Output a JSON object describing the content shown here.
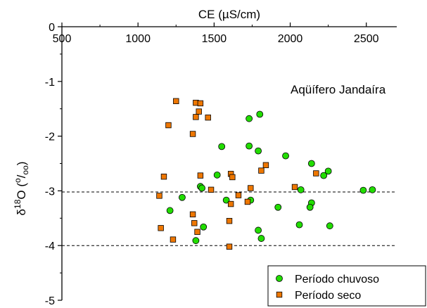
{
  "chart_data": {
    "type": "scatter",
    "xlabel": "CE (µS/cm)",
    "ylabel": "δ¹⁸O (⁰/₀₀)",
    "ylabel_parts": {
      "delta": "δ",
      "sup_mass": "18",
      "element": "O (",
      "sup_o": "o",
      "slash": "/",
      "sub_oo": "oo",
      "close": ")"
    },
    "annotation": "Aqüífero Jandaíra",
    "xlim": [
      500,
      2700
    ],
    "ylim": [
      -5,
      0
    ],
    "x_axis_position": "top",
    "xticks": [
      500,
      1000,
      1500,
      2000,
      2500
    ],
    "xtick_labels": [
      "500",
      "1000",
      "1500",
      "2000",
      "2500"
    ],
    "yticks": [
      0,
      -1,
      -2,
      -3,
      -4,
      -5
    ],
    "ytick_labels": [
      "0",
      "-1",
      "-2",
      "-3",
      "-4",
      "-5"
    ],
    "reference_lines": [
      -3.02,
      -4.0
    ],
    "reference_line_style": "dashed",
    "grid": false,
    "legend_position": "bottom-right",
    "series": [
      {
        "name": "Período chuvoso",
        "marker": "circle",
        "color": "#22dd00",
        "points": [
          [
            1730,
            -1.68
          ],
          [
            1800,
            -1.6
          ],
          [
            1550,
            -2.19
          ],
          [
            1730,
            -2.18
          ],
          [
            1790,
            -2.27
          ],
          [
            1970,
            -2.36
          ],
          [
            2140,
            -2.5
          ],
          [
            2250,
            -2.64
          ],
          [
            2220,
            -2.72
          ],
          [
            1520,
            -2.71
          ],
          [
            1410,
            -2.92
          ],
          [
            1420,
            -2.95
          ],
          [
            2480,
            -2.99
          ],
          [
            2540,
            -2.98
          ],
          [
            2070,
            -2.98
          ],
          [
            1290,
            -3.12
          ],
          [
            1740,
            -3.17
          ],
          [
            1580,
            -3.17
          ],
          [
            2140,
            -3.22
          ],
          [
            2130,
            -3.3
          ],
          [
            1920,
            -3.3
          ],
          [
            1210,
            -3.36
          ],
          [
            2060,
            -3.62
          ],
          [
            2260,
            -3.64
          ],
          [
            1430,
            -3.66
          ],
          [
            1790,
            -3.72
          ],
          [
            1380,
            -3.91
          ],
          [
            1810,
            -3.87
          ]
        ]
      },
      {
        "name": "Período seco",
        "marker": "square",
        "color": "#ee7700",
        "points": [
          [
            1250,
            -1.36
          ],
          [
            1380,
            -1.39
          ],
          [
            1410,
            -1.4
          ],
          [
            1400,
            -1.55
          ],
          [
            1460,
            -1.66
          ],
          [
            1380,
            -1.65
          ],
          [
            1200,
            -1.8
          ],
          [
            1360,
            -1.96
          ],
          [
            1840,
            -2.53
          ],
          [
            1810,
            -2.63
          ],
          [
            2170,
            -2.68
          ],
          [
            1610,
            -2.69
          ],
          [
            1410,
            -2.72
          ],
          [
            1620,
            -2.75
          ],
          [
            1170,
            -2.74
          ],
          [
            2030,
            -2.93
          ],
          [
            1740,
            -2.95
          ],
          [
            1480,
            -2.98
          ],
          [
            1660,
            -3.08
          ],
          [
            1140,
            -3.09
          ],
          [
            1720,
            -3.2
          ],
          [
            1610,
            -3.24
          ],
          [
            1360,
            -3.43
          ],
          [
            1600,
            -3.55
          ],
          [
            1370,
            -3.59
          ],
          [
            1150,
            -3.68
          ],
          [
            1390,
            -3.75
          ],
          [
            1230,
            -3.89
          ],
          [
            1600,
            -4.02
          ]
        ]
      }
    ]
  }
}
